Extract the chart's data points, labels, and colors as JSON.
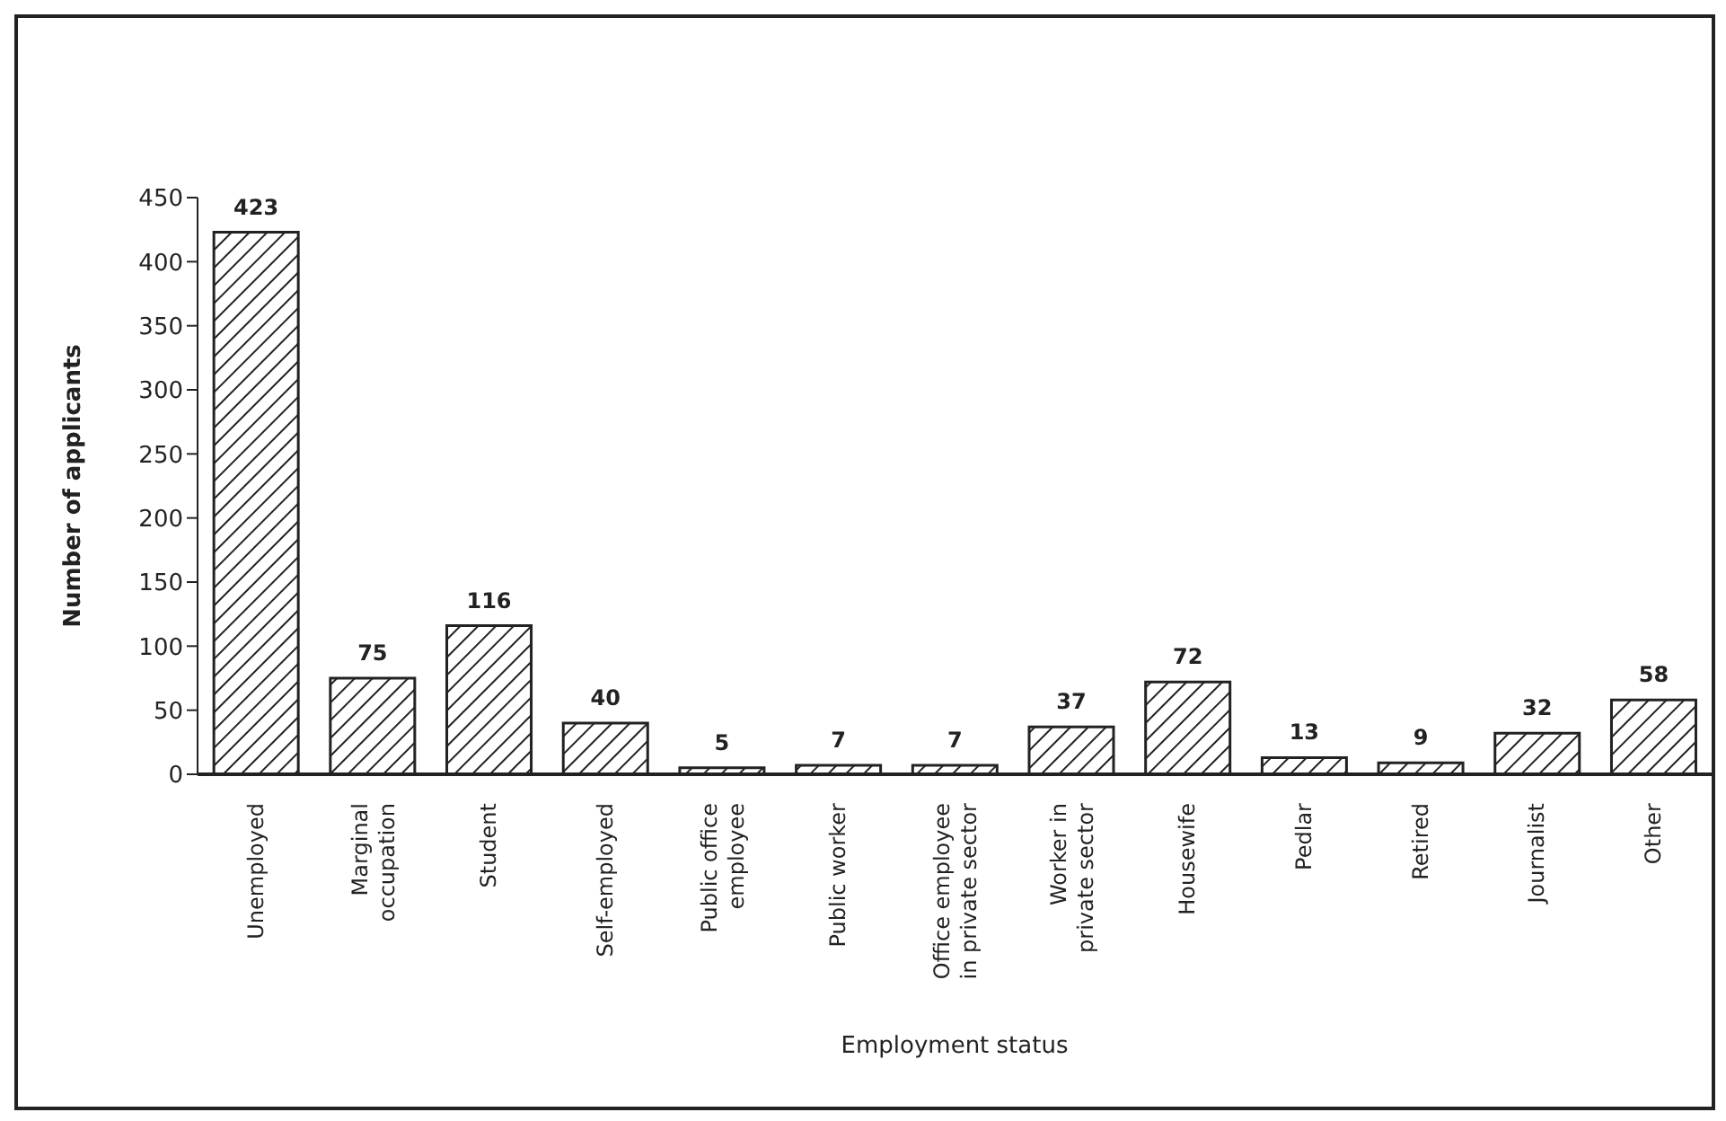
{
  "chart_data": {
    "type": "bar",
    "xlabel": "Employment status",
    "ylabel": "Number of applicants",
    "categories": [
      "Unemployed",
      "Marginal occupation",
      "Student",
      "Self-employed",
      "Public office employee",
      "Public worker",
      "Office employee in private sector",
      "Worker in private sector",
      "Housewife",
      "Pedlar",
      "Retired",
      "Journalist",
      "Other"
    ],
    "values": [
      423,
      75,
      116,
      40,
      5,
      7,
      7,
      37,
      72,
      13,
      9,
      32,
      58
    ],
    "color": "#222222",
    "ylim": [
      0,
      450
    ],
    "yticks": [
      0,
      50,
      100,
      150,
      200,
      250,
      300,
      350,
      400,
      450
    ],
    "data_labels": true,
    "grid": false
  }
}
